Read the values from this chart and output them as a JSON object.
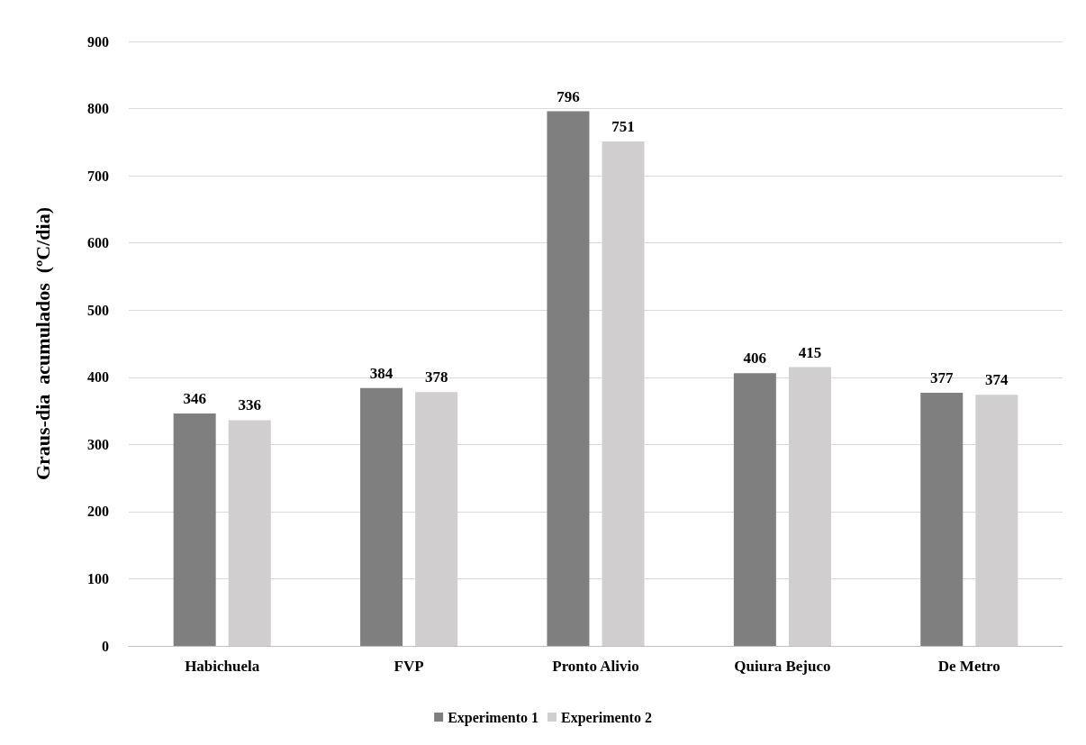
{
  "chart_data": {
    "type": "bar",
    "ylabel": "Graus-dia  acumulados  (ºC/dia)",
    "categories": [
      "Habichuela",
      "FVP",
      "Pronto Alivio",
      "Quiura Bejuco",
      "De Metro"
    ],
    "series": [
      {
        "name": "Experimento 1",
        "color": "#7f7f7f",
        "values": [
          346,
          384,
          796,
          406,
          377
        ]
      },
      {
        "name": "Experimento 2",
        "color": "#d0cece",
        "values": [
          336,
          378,
          751,
          415,
          374
        ]
      }
    ],
    "ylim": [
      0,
      900
    ],
    "yticks": [
      0,
      100,
      200,
      300,
      400,
      500,
      600,
      700,
      800,
      900
    ],
    "grid": "y",
    "legend": "bottom",
    "data_labels": true
  }
}
